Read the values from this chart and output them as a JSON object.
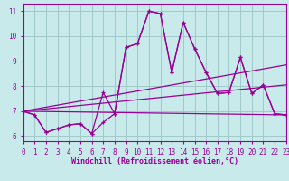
{
  "background_color": "#c8eaea",
  "grid_color": "#a0c8c8",
  "line_color": "#990099",
  "series_zigzag": {
    "x": [
      0,
      1,
      2,
      3,
      4,
      5,
      6,
      7,
      8,
      9,
      10,
      11,
      12,
      13,
      14,
      15,
      16,
      17,
      18,
      19,
      20,
      21,
      22,
      23
    ],
    "y": [
      7.0,
      6.85,
      6.15,
      6.3,
      6.45,
      6.5,
      6.1,
      7.75,
      6.9,
      9.55,
      9.7,
      11.0,
      10.9,
      8.55,
      10.55,
      9.5,
      8.55,
      7.7,
      7.75,
      9.15,
      7.7,
      8.05,
      6.9,
      6.85
    ]
  },
  "series_smooth": {
    "x": [
      0,
      1,
      2,
      3,
      4,
      5,
      6,
      7,
      8,
      9,
      10,
      11,
      12,
      13,
      14,
      15,
      16,
      17,
      18,
      19,
      20,
      21,
      22,
      23
    ],
    "y": [
      7.0,
      6.85,
      6.15,
      6.3,
      6.45,
      6.5,
      6.1,
      6.55,
      6.9,
      9.55,
      9.7,
      11.0,
      10.9,
      8.55,
      10.55,
      9.5,
      8.55,
      7.7,
      7.75,
      9.15,
      7.7,
      8.05,
      6.9,
      6.85
    ]
  },
  "trend_lines": [
    {
      "x": [
        0,
        23
      ],
      "y": [
        7.0,
        6.85
      ]
    },
    {
      "x": [
        0,
        23
      ],
      "y": [
        7.0,
        8.05
      ]
    },
    {
      "x": [
        0,
        23
      ],
      "y": [
        7.0,
        8.85
      ]
    }
  ],
  "xlabel": "Windchill (Refroidissement éolien,°C)",
  "xlim": [
    0,
    23
  ],
  "ylim": [
    5.8,
    11.3
  ],
  "yticks": [
    6,
    7,
    8,
    9,
    10,
    11
  ],
  "xticks": [
    0,
    1,
    2,
    3,
    4,
    5,
    6,
    7,
    8,
    9,
    10,
    11,
    12,
    13,
    14,
    15,
    16,
    17,
    18,
    19,
    20,
    21,
    22,
    23
  ],
  "tick_fontsize": 5.5,
  "xlabel_fontsize": 6.0
}
